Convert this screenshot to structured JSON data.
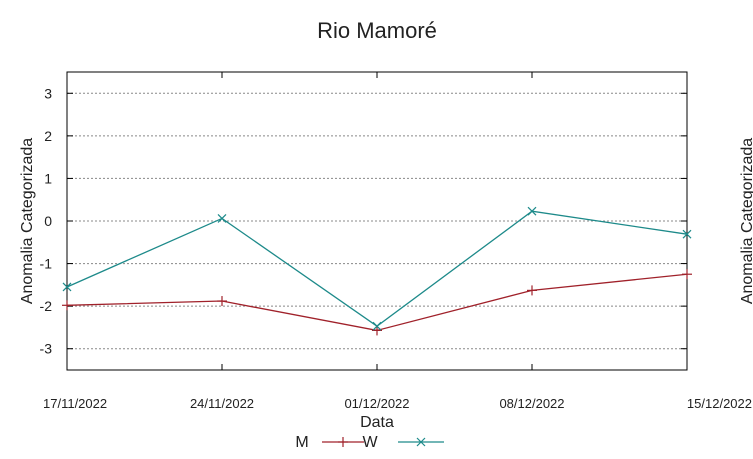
{
  "chart_data": {
    "type": "line",
    "title": "Rio Mamoré",
    "xlabel": "Data",
    "ylabel": "Anomalia Categorizada",
    "right_ylabel": "Anomalia Categorizada",
    "categories": [
      "17/11/2022",
      "24/11/2022",
      "01/12/2022",
      "08/12/2022",
      "15/12/2022"
    ],
    "yticks": [
      3,
      2,
      1,
      0,
      -1,
      -2,
      -3
    ],
    "ylim": [
      -3.5,
      3.5
    ],
    "grid": true,
    "legend_position": "bottom-center",
    "series": [
      {
        "name": "M",
        "color": "#a0212a",
        "marker": "plus",
        "values": [
          -1.98,
          -1.88,
          -2.57,
          -1.63,
          -1.25
        ]
      },
      {
        "name": "W",
        "color": "#1d8a8a",
        "marker": "cross",
        "values": [
          -1.55,
          0.06,
          -2.47,
          0.23,
          -0.31
        ]
      }
    ]
  }
}
